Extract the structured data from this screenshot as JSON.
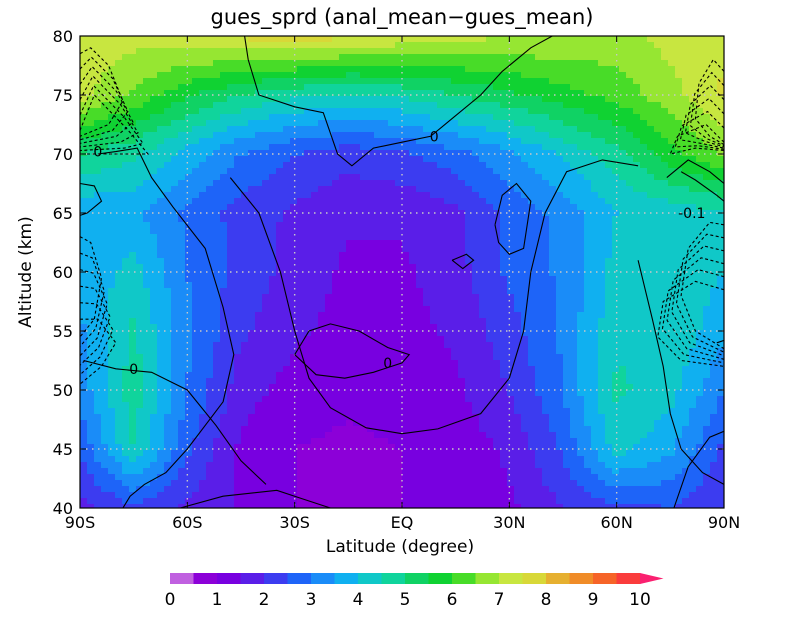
{
  "chart_data": {
    "type": "heatmap",
    "title": "gues_sprd (anal_mean−gues_mean)",
    "xlabel": "Latitude (degree)",
    "ylabel": "Altitude (km)",
    "xlim": [
      -90,
      90
    ],
    "ylim": [
      40,
      80
    ],
    "x_ticks": [
      -90,
      -60,
      -30,
      0,
      30,
      60,
      90
    ],
    "x_tick_labels": [
      "90S",
      "60S",
      "30S",
      "EQ",
      "30N",
      "60N",
      "90N"
    ],
    "y_ticks": [
      40,
      45,
      50,
      55,
      60,
      65,
      70,
      75,
      80
    ],
    "y_tick_labels": [
      "40",
      "45",
      "50",
      "55",
      "60",
      "65",
      "70",
      "75",
      "80"
    ],
    "grid": true,
    "colorbar": {
      "levels": [
        0,
        0.5,
        1,
        1.5,
        2,
        2.5,
        3,
        3.5,
        4,
        4.5,
        5,
        5.5,
        6,
        6.5,
        7,
        7.5,
        8,
        8.5,
        9,
        9.5,
        10
      ],
      "tick_labels": [
        "0",
        "1",
        "2",
        "3",
        "4",
        "5",
        "6",
        "7",
        "8",
        "9",
        "10"
      ],
      "colors": [
        "#c060e0",
        "#8c00d8",
        "#7800e0",
        "#5a1ee8",
        "#3c3cf0",
        "#1e64f8",
        "#1a8cf8",
        "#10b0f0",
        "#10c8c8",
        "#10d49c",
        "#10d264",
        "#10d232",
        "#48dc28",
        "#96e632",
        "#c8e640",
        "#d8d838",
        "#e6b030",
        "#f08c28",
        "#f66428",
        "#fa3c3c",
        "#fa2070"
      ],
      "extend": "max"
    },
    "contour_labels": [
      {
        "text": "0",
        "x": 9,
        "y": 71.5
      },
      {
        "text": "0",
        "x": -85,
        "y": 70.2
      },
      {
        "text": "-0.1",
        "x": 81,
        "y": 65
      },
      {
        "text": "0",
        "x": -75,
        "y": 51.8
      },
      {
        "text": "0",
        "x": -4,
        "y": 52.3
      }
    ],
    "shading_grid": {
      "latitudes": [
        -90,
        -75,
        -60,
        -45,
        -30,
        -15,
        0,
        15,
        30,
        45,
        60,
        75,
        90
      ],
      "altitudes": [
        40,
        45,
        50,
        55,
        60,
        65,
        70,
        75,
        80
      ],
      "values": [
        [
          1.8,
          2.4,
          1.9,
          1.4,
          1.0,
          0.9,
          1.0,
          1.1,
          1.4,
          2.0,
          2.4,
          2.5,
          2.0
        ],
        [
          2.6,
          4.5,
          2.6,
          1.4,
          1.0,
          0.9,
          1.0,
          1.2,
          1.6,
          2.6,
          4.2,
          3.6,
          2.4
        ],
        [
          3.2,
          4.8,
          3.0,
          1.7,
          1.3,
          1.1,
          1.2,
          1.4,
          2.0,
          3.0,
          4.6,
          4.2,
          3.0
        ],
        [
          3.4,
          4.6,
          3.1,
          2.1,
          1.6,
          1.3,
          1.3,
          1.6,
          2.3,
          3.1,
          4.4,
          4.5,
          3.6
        ],
        [
          3.6,
          4.2,
          3.0,
          2.3,
          1.8,
          1.4,
          1.4,
          1.8,
          2.6,
          3.1,
          4.2,
          4.5,
          4.0
        ],
        [
          3.6,
          3.6,
          2.9,
          2.3,
          1.9,
          1.6,
          1.6,
          1.9,
          2.6,
          3.2,
          4.0,
          4.2,
          4.4
        ],
        [
          5.0,
          4.6,
          3.8,
          3.0,
          2.5,
          2.2,
          2.4,
          2.8,
          3.4,
          4.1,
          4.8,
          5.8,
          6.6
        ],
        [
          7.2,
          6.4,
          5.6,
          5.0,
          4.6,
          4.4,
          4.6,
          5.0,
          5.4,
          5.8,
          6.2,
          6.8,
          7.6
        ],
        [
          7.4,
          7.2,
          7.4,
          7.6,
          7.8,
          7.6,
          7.4,
          7.2,
          7.0,
          7.0,
          6.8,
          7.2,
          7.4
        ]
      ]
    }
  }
}
